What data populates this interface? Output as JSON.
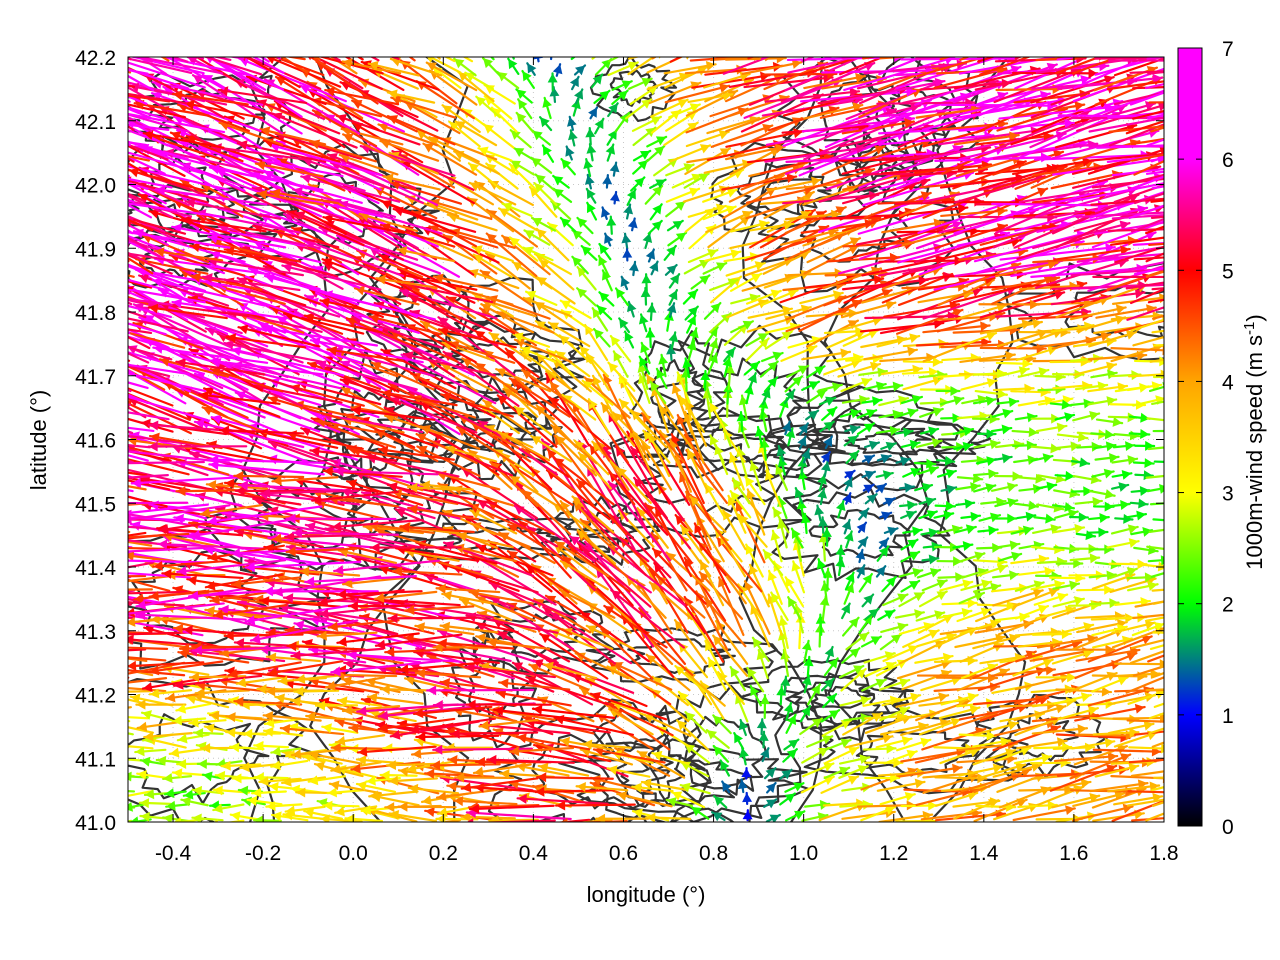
{
  "chart_data": {
    "type": "vector-field",
    "xlabel": "longitude (°)",
    "ylabel": "latitude (°)",
    "colorbar_label": "1000m-wind speed (m s",
    "colorbar_label_sup": "-1",
    "colorbar_label_close": ")",
    "xlim": [
      -0.5,
      1.8
    ],
    "ylim": [
      41.0,
      42.2
    ],
    "x_ticks": [
      -0.4,
      -0.2,
      0.0,
      0.2,
      0.4,
      0.6,
      0.8,
      1.0,
      1.2,
      1.4,
      1.6,
      1.8
    ],
    "x_tick_labels": [
      "-0.4",
      "-0.2",
      "0.0",
      "0.2",
      "0.4",
      "0.6",
      "0.8",
      "1.0",
      "1.2",
      "1.4",
      "1.6",
      "1.8"
    ],
    "y_ticks": [
      41.0,
      41.1,
      41.2,
      41.3,
      41.4,
      41.5,
      41.6,
      41.7,
      41.8,
      41.9,
      42.0,
      42.1,
      42.2
    ],
    "y_tick_labels": [
      "41.0",
      "41.1",
      "41.2",
      "41.3",
      "41.4",
      "41.5",
      "41.6",
      "41.7",
      "41.8",
      "41.9",
      "42.0",
      "42.1",
      "42.2"
    ],
    "colorbar_range": [
      0,
      7
    ],
    "colorbar_ticks": [
      0,
      1,
      2,
      3,
      4,
      5,
      6,
      7
    ],
    "colorbar_tick_labels": [
      "0",
      "1",
      "2",
      "3",
      "4",
      "5",
      "6",
      "7"
    ],
    "colormap": [
      "#000000",
      "#0000ff",
      "#00ff00",
      "#ffff00",
      "#ffa500",
      "#ff0000",
      "#ff00ff"
    ],
    "grid": true,
    "regions": [
      {
        "lon": [
          -0.5,
          0.6
        ],
        "lat": [
          41.7,
          42.05
        ],
        "dir_deg": 160,
        "speed": 6.6
      },
      {
        "lon": [
          0.6,
          1.8
        ],
        "lat": [
          41.75,
          42.15
        ],
        "dir_deg": 12,
        "speed": 6.4
      },
      {
        "lon": [
          -0.5,
          0.55
        ],
        "lat": [
          41.0,
          41.45
        ],
        "dir_deg": 178,
        "speed": 6.0
      },
      {
        "lon": [
          1.1,
          1.8
        ],
        "lat": [
          41.0,
          41.35
        ],
        "dir_deg": 10,
        "speed": 4.6
      },
      {
        "lon": [
          0.5,
          1.0
        ],
        "lat": [
          41.25,
          41.6
        ],
        "dir_deg": 125,
        "speed": 6.2
      },
      {
        "lon": [
          0.95,
          1.8
        ],
        "lat": [
          41.4,
          41.7
        ],
        "dir_deg": 0,
        "speed": 2.4
      },
      {
        "lon": [
          -0.5,
          0.1
        ],
        "lat": [
          41.0,
          41.15
        ],
        "dir_deg": 180,
        "speed": 1.6
      }
    ]
  }
}
